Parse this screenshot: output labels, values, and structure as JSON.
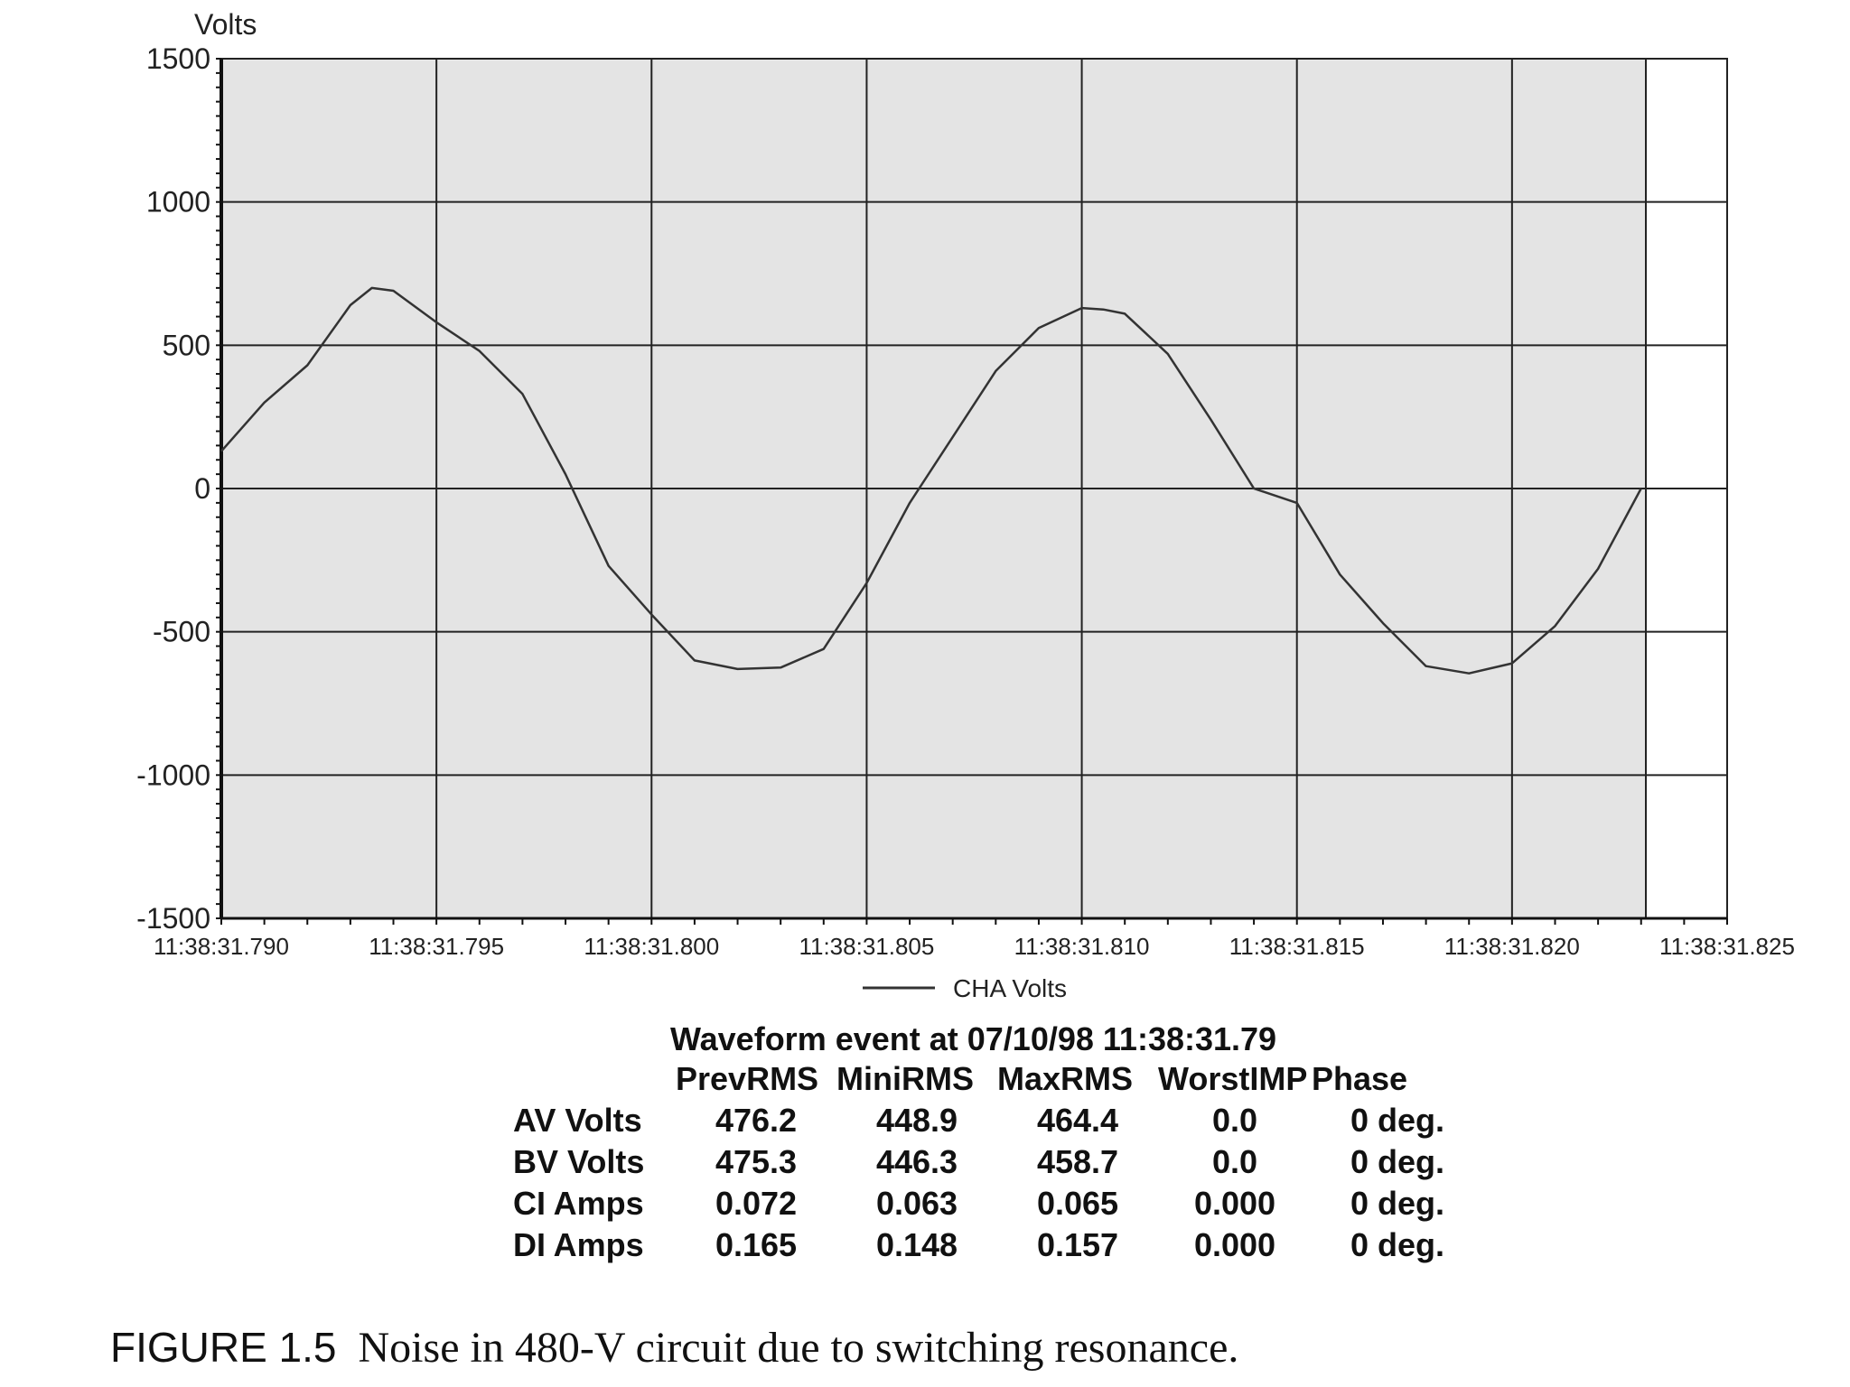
{
  "chart_data": {
    "type": "line",
    "ylabel": "Volts",
    "ylim": [
      -1500,
      1500
    ],
    "yticks": [
      1500,
      1000,
      500,
      0,
      -500,
      -1000,
      -1500
    ],
    "ytick_labels": [
      "1500",
      "1000",
      "500",
      "0",
      "-500",
      "-1000",
      "-1500"
    ],
    "xlim": [
      31.79,
      31.825
    ],
    "xticks": [
      31.79,
      31.795,
      31.8,
      31.805,
      31.81,
      31.815,
      31.82,
      31.825
    ],
    "xtick_labels": [
      "11:38:31.790",
      "11:38:31.795",
      "11:38:31.800",
      "11:38:31.805",
      "11:38:31.810",
      "11:38:31.815",
      "11:38:31.820",
      "11:38:31.825"
    ],
    "grid": true,
    "legend_position": "bottom-center",
    "series": [
      {
        "name": "CHA Volts",
        "color": "#333333",
        "x": [
          31.79,
          31.791,
          31.792,
          31.793,
          31.7935,
          31.794,
          31.795,
          31.796,
          31.797,
          31.798,
          31.799,
          31.8,
          31.801,
          31.802,
          31.803,
          31.804,
          31.805,
          31.806,
          31.807,
          31.808,
          31.809,
          31.81,
          31.8105,
          31.811,
          31.812,
          31.813,
          31.814,
          31.815,
          31.816,
          31.817,
          31.818,
          31.819,
          31.82,
          31.821,
          31.822,
          31.823
        ],
        "y": [
          130,
          300,
          430,
          640,
          700,
          690,
          580,
          480,
          330,
          50,
          -270,
          -440,
          -600,
          -630,
          -625,
          -560,
          -330,
          -50,
          180,
          410,
          560,
          630,
          625,
          610,
          470,
          240,
          0,
          -50,
          -300,
          -470,
          -620,
          -645,
          -610,
          -480,
          -280,
          0
        ]
      }
    ]
  },
  "event": {
    "title": "Waveform event at 07/10/98 11:38:31.79",
    "columns": [
      "",
      "PrevRMS",
      "MiniRMS",
      "MaxRMS",
      "WorstIMP",
      "Phase"
    ],
    "rows": [
      [
        "AV Volts",
        "476.2",
        "448.9",
        "464.4",
        "0.0",
        "0 deg."
      ],
      [
        "BV Volts",
        "475.3",
        "446.3",
        "458.7",
        "0.0",
        "0 deg."
      ],
      [
        "CI Amps",
        "0.072",
        "0.063",
        "0.065",
        "0.000",
        "0 deg."
      ],
      [
        "DI Amps",
        "0.165",
        "0.148",
        "0.157",
        "0.000",
        "0 deg."
      ]
    ]
  },
  "caption": {
    "label": "FIGURE 1.5",
    "text": "Noise in 480-V circuit due to switching resonance."
  }
}
